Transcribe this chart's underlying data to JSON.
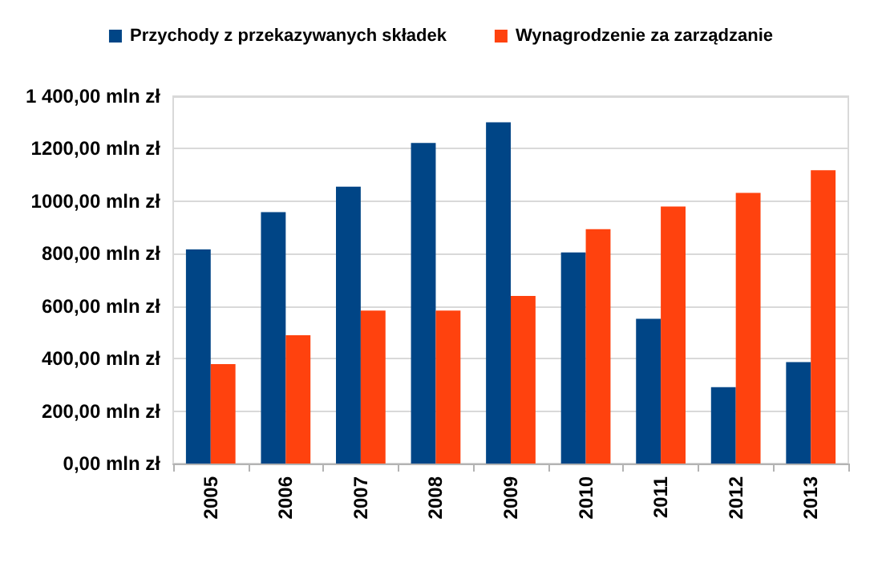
{
  "chart_data": {
    "type": "bar",
    "categories": [
      "2005",
      "2006",
      "2007",
      "2008",
      "2009",
      "2010",
      "2011",
      "2012",
      "2013"
    ],
    "series": [
      {
        "name": "Przychody z przekazywanych składek",
        "color": "#004586",
        "values": [
          816,
          958,
          1055,
          1222,
          1301,
          805,
          552,
          291,
          387
        ]
      },
      {
        "name": "Wynagrodzenie za zarządzanie",
        "color": "#ff420e",
        "values": [
          379,
          489,
          583,
          583,
          639,
          893,
          980,
          1032,
          1118
        ]
      }
    ],
    "ylim": [
      0,
      1400
    ],
    "yticks": [
      {
        "value": 0,
        "label": "0,00 mln zł"
      },
      {
        "value": 200,
        "label": "200,00 mln zł"
      },
      {
        "value": 400,
        "label": "400,00 mln zł"
      },
      {
        "value": 600,
        "label": "600,00 mln zł"
      },
      {
        "value": 800,
        "label": "800,00 mln zł"
      },
      {
        "value": 1000,
        "label": "1000,00 mln zł"
      },
      {
        "value": 1200,
        "label": "1200,00 mln zł"
      },
      {
        "value": 1400,
        "label": "1 400,00 mln zł"
      }
    ],
    "grid": "y",
    "legend": "top"
  }
}
